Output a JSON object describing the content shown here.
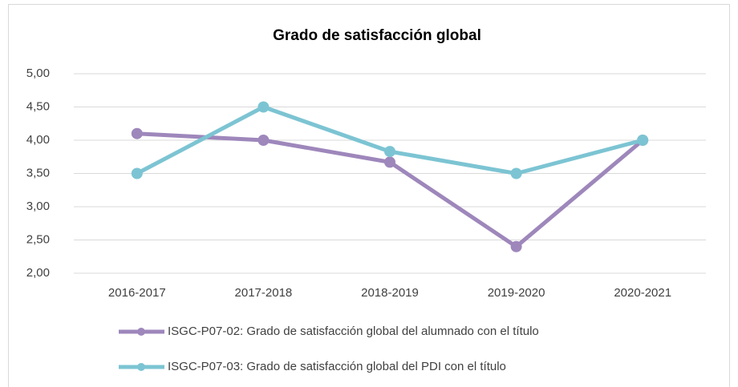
{
  "chart_data": {
    "type": "line",
    "title": "Grado de satisfacción global",
    "categories": [
      "2016-2017",
      "2017-2018",
      "2018-2019",
      "2019-2020",
      "2020-2021"
    ],
    "series": [
      {
        "name": "ISGC-P07-02: Grado de satisfacción global del alumnado con el título",
        "color": "#9e87bb",
        "values": [
          4.1,
          4.0,
          3.67,
          2.4,
          4.0
        ]
      },
      {
        "name": "ISGC-P07-03: Grado de satisfacción global del PDI con el título",
        "color": "#7cc4d3",
        "values": [
          3.5,
          4.5,
          3.83,
          3.5,
          4.0
        ]
      }
    ],
    "ylim": [
      2,
      5
    ],
    "yticks": [
      {
        "value": 2,
        "label": "2,00"
      },
      {
        "value": 2.5,
        "label": "2,50"
      },
      {
        "value": 3,
        "label": "3,00"
      },
      {
        "value": 3.5,
        "label": "3,50"
      },
      {
        "value": 4,
        "label": "4,00"
      },
      {
        "value": 4.5,
        "label": "4,50"
      },
      {
        "value": 5,
        "label": "5,00"
      }
    ],
    "grid": true,
    "legend": "bottom"
  }
}
